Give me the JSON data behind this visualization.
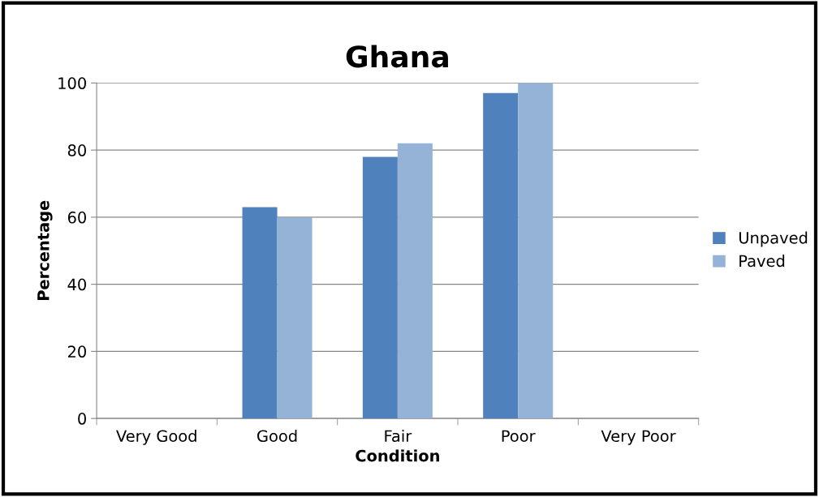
{
  "chart_data": {
    "type": "bar",
    "title": "Ghana",
    "xlabel": "Condition",
    "ylabel": "Percentage",
    "categories": [
      "Very Good",
      "Good",
      "Fair",
      "Poor",
      "Very Poor"
    ],
    "series": [
      {
        "name": "Unpaved",
        "color": "#4f81bd",
        "values": [
          null,
          63,
          78,
          97,
          null
        ]
      },
      {
        "name": "Paved",
        "color": "#95b3d7",
        "values": [
          null,
          60,
          82,
          100,
          null
        ]
      }
    ],
    "ylim": [
      0,
      100
    ],
    "yticks": [
      0,
      20,
      40,
      60,
      80,
      100
    ],
    "grid": "y",
    "legend": "right"
  }
}
